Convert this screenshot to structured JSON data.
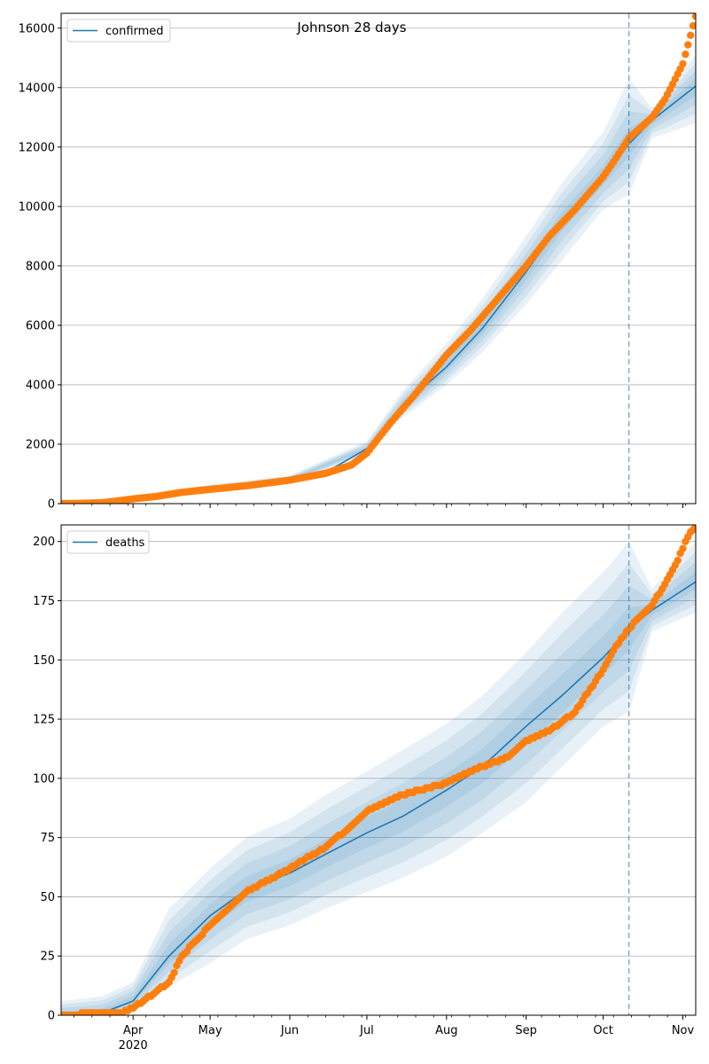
{
  "chart_data": [
    {
      "type": "line",
      "title": "Johnson 28 days",
      "legend": {
        "entries": [
          "confirmed"
        ],
        "placement": "top-left"
      },
      "grid": {
        "y": true,
        "x": false
      },
      "x_range": [
        "2020-03-04",
        "2020-11-06"
      ],
      "ylim": [
        0,
        16500
      ],
      "y_ticks": [
        0,
        2000,
        4000,
        6000,
        8000,
        10000,
        12000,
        14000,
        16000
      ],
      "x_ticks": [
        {
          "date": "2020-04-01",
          "label": "Apr",
          "sublabel": "2020"
        },
        {
          "date": "2020-05-01",
          "label": "May"
        },
        {
          "date": "2020-06-01",
          "label": "Jun"
        },
        {
          "date": "2020-07-01",
          "label": "Jul"
        },
        {
          "date": "2020-08-01",
          "label": "Aug"
        },
        {
          "date": "2020-09-01",
          "label": "Sep"
        },
        {
          "date": "2020-10-01",
          "label": "Oct"
        },
        {
          "date": "2020-11-01",
          "label": "Nov"
        }
      ],
      "forecast_start": "2020-10-11",
      "series": [
        {
          "name": "confirmed",
          "kind": "model-median",
          "color": "#1f77b4",
          "x": [
            "2020-03-04",
            "2020-03-20",
            "2020-04-01",
            "2020-04-15",
            "2020-05-01",
            "2020-05-15",
            "2020-06-01",
            "2020-06-15",
            "2020-07-01",
            "2020-07-15",
            "2020-08-01",
            "2020-08-15",
            "2020-09-01",
            "2020-09-15",
            "2020-10-01",
            "2020-10-11",
            "2020-10-20",
            "2020-11-06"
          ],
          "y": [
            0,
            30,
            150,
            330,
            520,
            640,
            800,
            1050,
            1850,
            3300,
            4600,
            5900,
            7800,
            9500,
            11000,
            12100,
            12900,
            14050
          ]
        },
        {
          "kind": "uncertainty-band",
          "color": "#1f77b4",
          "x": [
            "2020-03-04",
            "2020-04-01",
            "2020-05-01",
            "2020-06-01",
            "2020-07-01",
            "2020-07-15",
            "2020-08-01",
            "2020-08-15",
            "2020-09-01",
            "2020-09-15",
            "2020-10-01",
            "2020-10-11",
            "2020-10-20",
            "2020-11-06"
          ],
          "lower": [
            0,
            100,
            430,
            700,
            1650,
            2900,
            4000,
            5100,
            6700,
            8200,
            9900,
            10400,
            12300,
            12800
          ],
          "upper": [
            80,
            220,
            640,
            950,
            2100,
            3800,
            5400,
            6900,
            9000,
            10800,
            12500,
            14300,
            13300,
            15100
          ]
        },
        {
          "kind": "observed",
          "color": "#ff7f0e",
          "x": [
            "2020-03-04",
            "2020-03-10",
            "2020-03-20",
            "2020-03-25",
            "2020-04-01",
            "2020-04-10",
            "2020-04-20",
            "2020-05-01",
            "2020-05-15",
            "2020-06-01",
            "2020-06-15",
            "2020-06-25",
            "2020-07-01",
            "2020-07-10",
            "2020-07-20",
            "2020-08-01",
            "2020-08-10",
            "2020-08-20",
            "2020-09-01",
            "2020-09-10",
            "2020-09-20",
            "2020-10-01",
            "2020-10-05",
            "2020-10-11",
            "2020-10-20",
            "2020-10-25",
            "2020-11-01",
            "2020-11-06"
          ],
          "y": [
            0,
            5,
            30,
            80,
            160,
            240,
            380,
            480,
            600,
            790,
            1020,
            1300,
            1700,
            2700,
            3700,
            5000,
            5800,
            6800,
            8000,
            9000,
            9900,
            11000,
            11500,
            12300,
            13000,
            13600,
            14800,
            16400
          ]
        }
      ]
    },
    {
      "type": "line",
      "title": "",
      "legend": {
        "entries": [
          "deaths"
        ],
        "placement": "top-left"
      },
      "grid": {
        "y": true,
        "x": false
      },
      "x_range": [
        "2020-03-04",
        "2020-11-06"
      ],
      "ylim": [
        0,
        207
      ],
      "y_ticks": [
        0,
        25,
        50,
        75,
        100,
        125,
        150,
        175,
        200
      ],
      "x_ticks": [
        {
          "date": "2020-04-01",
          "label": "Apr",
          "sublabel": "2020"
        },
        {
          "date": "2020-05-01",
          "label": "May"
        },
        {
          "date": "2020-06-01",
          "label": "Jun"
        },
        {
          "date": "2020-07-01",
          "label": "Jul"
        },
        {
          "date": "2020-08-01",
          "label": "Aug"
        },
        {
          "date": "2020-09-01",
          "label": "Sep"
        },
        {
          "date": "2020-10-01",
          "label": "Oct"
        },
        {
          "date": "2020-11-01",
          "label": "Nov"
        }
      ],
      "forecast_start": "2020-10-11",
      "series": [
        {
          "name": "deaths",
          "kind": "model-median",
          "color": "#1f77b4",
          "x": [
            "2020-03-04",
            "2020-03-20",
            "2020-04-01",
            "2020-04-15",
            "2020-05-01",
            "2020-05-15",
            "2020-06-01",
            "2020-06-15",
            "2020-07-01",
            "2020-07-15",
            "2020-08-01",
            "2020-08-15",
            "2020-09-01",
            "2020-09-15",
            "2020-10-01",
            "2020-10-11",
            "2020-10-20",
            "2020-11-06"
          ],
          "y": [
            0,
            1,
            6,
            25,
            42,
            53,
            60,
            68,
            77,
            84,
            95,
            105,
            122,
            135,
            151,
            163,
            171,
            183
          ]
        },
        {
          "kind": "uncertainty-band",
          "color": "#1f77b4",
          "x": [
            "2020-03-04",
            "2020-03-20",
            "2020-04-01",
            "2020-04-15",
            "2020-05-01",
            "2020-05-15",
            "2020-06-01",
            "2020-06-15",
            "2020-07-01",
            "2020-07-15",
            "2020-08-01",
            "2020-08-15",
            "2020-09-01",
            "2020-09-15",
            "2020-10-01",
            "2020-10-11",
            "2020-10-20",
            "2020-11-06"
          ],
          "lower": [
            0,
            0,
            2,
            12,
            22,
            32,
            38,
            45,
            52,
            58,
            67,
            77,
            90,
            105,
            122,
            128,
            162,
            170
          ],
          "upper": [
            6,
            8,
            14,
            45,
            62,
            75,
            83,
            93,
            103,
            112,
            123,
            135,
            153,
            170,
            187,
            200,
            180,
            200
          ]
        },
        {
          "kind": "observed",
          "color": "#ff7f0e",
          "x": [
            "2020-03-04",
            "2020-03-20",
            "2020-03-28",
            "2020-04-01",
            "2020-04-10",
            "2020-04-15",
            "2020-04-20",
            "2020-05-01",
            "2020-05-15",
            "2020-06-01",
            "2020-06-15",
            "2020-06-25",
            "2020-07-01",
            "2020-07-15",
            "2020-07-25",
            "2020-08-01",
            "2020-08-15",
            "2020-08-25",
            "2020-09-01",
            "2020-09-10",
            "2020-09-20",
            "2020-10-01",
            "2020-10-05",
            "2020-10-11",
            "2020-10-15",
            "2020-10-20",
            "2020-10-25",
            "2020-10-30",
            "2020-11-02",
            "2020-11-06"
          ],
          "y": [
            0,
            1,
            1,
            3,
            10,
            14,
            25,
            38,
            52,
            62,
            71,
            80,
            86,
            93,
            96,
            98,
            105,
            109,
            116,
            120,
            128,
            146,
            154,
            163,
            168,
            173,
            182,
            192,
            200,
            207
          ]
        }
      ]
    }
  ]
}
